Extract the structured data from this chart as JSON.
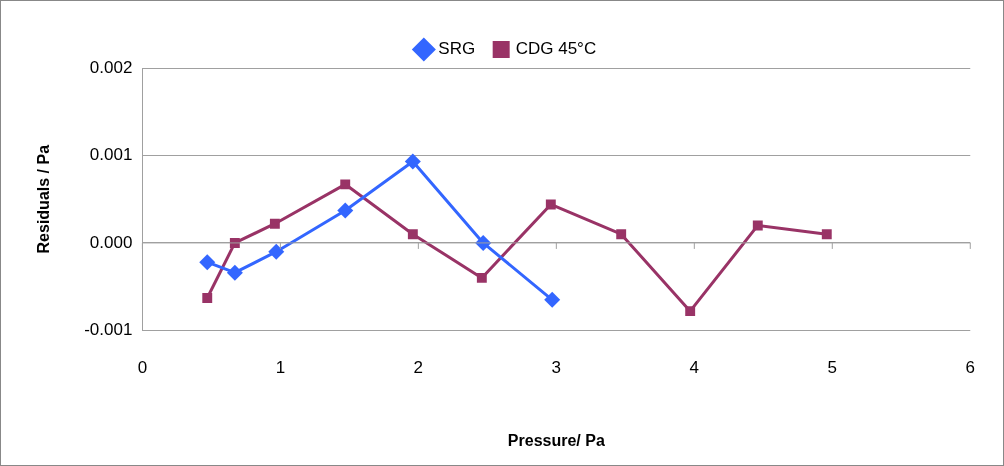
{
  "chart_data": {
    "type": "line",
    "xlabel": "Pressure/ Pa",
    "ylabel": "Residuals / Pa",
    "series": [
      {
        "name": "SRG",
        "color": "#3366ff",
        "marker": "diamond",
        "x": [
          0.47,
          0.67,
          0.97,
          1.47,
          1.96,
          2.47,
          2.97
        ],
        "values": [
          -0.00022,
          -0.00034,
          -0.0001,
          0.00037,
          0.00093,
          0,
          -0.00065
        ]
      },
      {
        "name": "CDG 45°C",
        "color": "#993366",
        "marker": "square",
        "x": [
          0.47,
          0.67,
          0.96,
          1.47,
          1.96,
          2.46,
          2.96,
          3.47,
          3.97,
          4.46,
          4.96
        ],
        "values": [
          -0.00063,
          0,
          0.00022,
          0.00067,
          0.0001,
          -0.0004,
          0.00044,
          0.0001,
          -0.00078,
          0.0002,
          0.0001
        ]
      }
    ],
    "xlim": [
      0,
      6
    ],
    "xticks": [
      0,
      1,
      2,
      3,
      4,
      5,
      6
    ],
    "ylim": [
      -0.001,
      0.002
    ],
    "yticks": [
      -0.001,
      {
        "value": 0,
        "label": "0.000"
      },
      0.001,
      0.002
    ],
    "grid": "y",
    "legend": "top",
    "line_style": "solid"
  }
}
